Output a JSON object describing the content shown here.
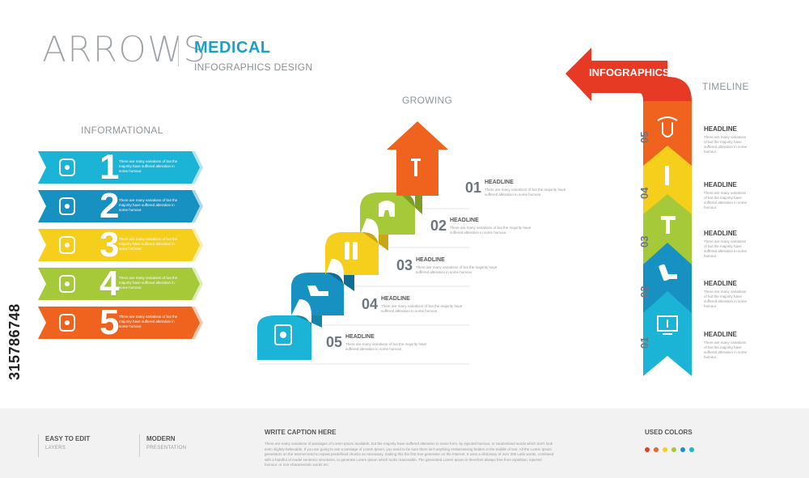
{
  "header": {
    "brand": "ARROWS",
    "topic": "MEDICAL",
    "subtitle": "INFOGRAPHICS DESIGN"
  },
  "sections": {
    "informational": "INFORMATIONAL",
    "growing": "GROWING",
    "timeline": "TIMELINE",
    "banner": "INFOGRAPHICS"
  },
  "colors": {
    "cyan": "#1cb4d6",
    "blue": "#1790c2",
    "yellow": "#f6cf1d",
    "green": "#a6c93a",
    "orange": "#f0631f",
    "red": "#e63a25"
  },
  "informational": [
    {
      "num": "1",
      "icon": "torso-icon",
      "text": "There are many variations of but the majority have suffered alteration in some humour."
    },
    {
      "num": "2",
      "icon": "gauge-icon",
      "text": "There are many variations of but the majority have suffered alteration in some humour."
    },
    {
      "num": "3",
      "icon": "bottle-icon",
      "text": "There are many variations of but the majority have suffered alteration in some humour."
    },
    {
      "num": "4",
      "icon": "tooth-icon",
      "text": "There are many variations of but the majority have suffered alteration in some humour."
    },
    {
      "num": "5",
      "icon": "pancreas-icon",
      "text": "There are many variations of but the majority have suffered alteration in some humour."
    }
  ],
  "growing": [
    {
      "num": "01",
      "head": "HEADLINE",
      "text": "There are many variations of but the majority have suffered alteration in some humour."
    },
    {
      "num": "02",
      "head": "HEADLINE",
      "text": "There are many variations of but the majority have suffered alteration in some humour."
    },
    {
      "num": "03",
      "head": "HEADLINE",
      "text": "There are many variations of but the majority have suffered alteration in some humour."
    },
    {
      "num": "04",
      "head": "HEADLINE",
      "text": "There are many variations of but the majority have suffered alteration in some humour."
    },
    {
      "num": "05",
      "head": "HEADLINE",
      "text": "There are many variations of but the majority have suffered alteration in some humour."
    }
  ],
  "timeline": [
    {
      "num": "05",
      "head": "HEADLINE",
      "text": "There are many variations of but the majority have suffered alteration in some humour."
    },
    {
      "num": "04",
      "head": "HEADLINE",
      "text": "There are many variations of but the majority have suffered alteration in some humour."
    },
    {
      "num": "03",
      "head": "HEADLINE",
      "text": "There are many variations of but the majority have suffered alteration in some humour."
    },
    {
      "num": "02",
      "head": "HEADLINE",
      "text": "There are many variations of but the majority have suffered alteration in some humour."
    },
    {
      "num": "01",
      "head": "HEADLINE",
      "text": "There are many variations of but the majority have suffered alteration in some humour."
    }
  ],
  "footer": {
    "easy_title": "EASY TO EDIT",
    "easy_sub": "LAYERS",
    "modern_title": "MODERN",
    "modern_sub": "PRESENTATION",
    "caption_title": "WRITE CAPTION HERE",
    "caption_text": "There are many variations of passages of Lorem Ipsum available, but the majority have suffered alteration in some form, by injected humour, or randomised words which don't look even slightly believable. If you are going to use a passage of Lorem Ipsum, you need to be sure there isn't anything embarrassing hidden in the middle of text. All the Lorem Ipsum generators on the Internet tend to repeat predefined chunks as necessary, making this the first true generator on the Internet. It uses a dictionary of over 200 Latin words, combined with a handful of model sentence structures, to generate Lorem Ipsum which looks reasonable. The generated Lorem Ipsum is therefore always free from repetition, injected humour, or non-characteristic words etc.",
    "used_colors": "USED COLORS"
  },
  "side_id": "315786748"
}
